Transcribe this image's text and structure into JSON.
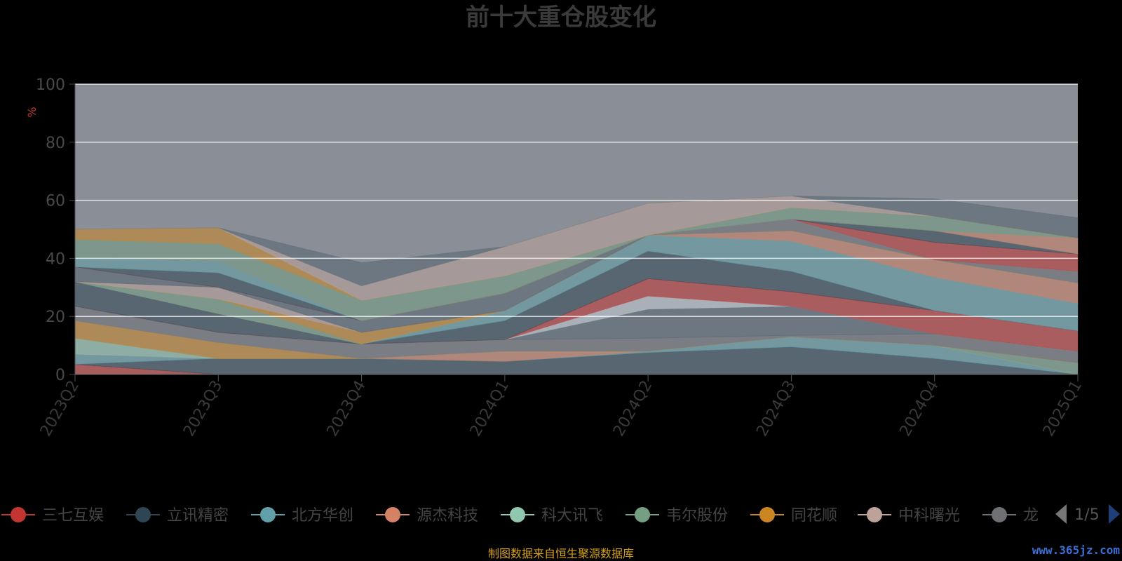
{
  "chart_data": {
    "type": "area",
    "title": "前十大重仓股变化",
    "ylabel": "%",
    "ylim": [
      0,
      100
    ],
    "yticks": [
      "0",
      "20",
      "40",
      "60",
      "80",
      "100"
    ],
    "categories": [
      "2023Q2",
      "2023Q3",
      "2023Q4",
      "2024Q1",
      "2024Q2",
      "2024Q3",
      "2024Q4",
      "2025Q1"
    ],
    "stacked": true,
    "series": [
      {
        "name": "三七互娱",
        "color": "#c23531",
        "values": [
          3.5,
          0,
          0,
          0,
          0,
          0,
          0,
          0
        ]
      },
      {
        "name": "立讯精密",
        "color": "#2f4554",
        "values": [
          0,
          5.5,
          5.5,
          4.5,
          7.5,
          9.5,
          5.5,
          0
        ]
      },
      {
        "name": "北方华创",
        "color": "#61a0a8",
        "values": [
          3.5,
          0,
          0,
          0,
          0.5,
          3.5,
          4.5,
          0
        ]
      },
      {
        "name": "源杰科技",
        "color": "#d48265",
        "values": [
          0,
          0,
          0,
          3.5,
          0,
          0,
          0,
          0
        ]
      },
      {
        "name": "科大讯飞",
        "color": "#91c7ae",
        "values": [
          5.5,
          0,
          0,
          0,
          0,
          0,
          0,
          0
        ]
      },
      {
        "name": "韦尔股份",
        "color": "#749f83",
        "values": [
          0,
          0,
          0,
          0,
          0,
          0,
          0,
          4
        ]
      },
      {
        "name": "同花顺",
        "color": "#ca8622",
        "values": [
          6,
          5.5,
          0,
          0,
          0,
          0,
          0,
          0
        ]
      },
      {
        "name": "中科曙光",
        "color": "#bda29a",
        "values": [
          0,
          0,
          0,
          0,
          0,
          0,
          0,
          0
        ]
      },
      {
        "name": "龙迅股份",
        "color": "#6e7074",
        "values": [
          5,
          3.5,
          5,
          4,
          4.5,
          0.5,
          4,
          4
        ]
      },
      {
        "name": "",
        "color": "#546570",
        "values": [
          0,
          0,
          0,
          0,
          10,
          10,
          0,
          0
        ]
      },
      {
        "name": "",
        "color": "#c4ccd3",
        "values": [
          0,
          0,
          0,
          0,
          4.5,
          0,
          0,
          0
        ]
      },
      {
        "name": "",
        "color": "#c23531",
        "values": [
          0,
          0,
          0,
          0,
          6,
          5,
          8,
          7
        ]
      },
      {
        "name": "",
        "color": "#2f4554",
        "values": [
          8.5,
          6.5,
          0,
          6.5,
          9.5,
          7,
          0,
          0
        ]
      },
      {
        "name": "",
        "color": "#61a0a8",
        "values": [
          0,
          0,
          0,
          3.5,
          5.5,
          10.5,
          11.5,
          9.5
        ]
      },
      {
        "name": "",
        "color": "#d48265",
        "values": [
          0,
          0,
          0,
          0,
          0,
          3.5,
          6,
          7
        ]
      },
      {
        "name": "",
        "color": "#91c7ae",
        "values": [
          0,
          0,
          0,
          0,
          0,
          0,
          0,
          0
        ]
      },
      {
        "name": "",
        "color": "#749f83",
        "values": [
          0,
          5,
          0,
          0,
          0,
          0,
          0,
          0
        ]
      },
      {
        "name": "",
        "color": "#ca8622",
        "values": [
          0,
          0,
          4,
          0,
          0,
          0,
          0,
          0
        ]
      },
      {
        "name": "",
        "color": "#bda29a",
        "values": [
          0,
          4,
          0,
          0,
          0,
          0,
          0,
          0
        ]
      },
      {
        "name": "",
        "color": "#6e7074",
        "values": [
          0,
          0,
          0,
          0,
          0,
          4,
          0,
          4
        ]
      },
      {
        "name": "",
        "color": "#546570",
        "values": [
          5,
          0,
          4,
          6,
          0,
          0,
          0,
          0
        ]
      },
      {
        "name": "",
        "color": "#c4ccd3",
        "values": [
          0,
          0,
          0,
          0,
          0,
          0,
          0,
          0
        ]
      },
      {
        "name": "",
        "color": "#c23531",
        "values": [
          0,
          0,
          0,
          0,
          0,
          0,
          6,
          6
        ]
      },
      {
        "name": "",
        "color": "#2f4554",
        "values": [
          0,
          5,
          0,
          0,
          0,
          0,
          4,
          0
        ]
      },
      {
        "name": "",
        "color": "#61a0a8",
        "values": [
          3.5,
          4,
          0,
          0,
          0,
          0,
          0,
          0
        ]
      },
      {
        "name": "",
        "color": "#d48265",
        "values": [
          0,
          0,
          0,
          0,
          0,
          0,
          0,
          5.5
        ]
      },
      {
        "name": "",
        "color": "#749f83",
        "values": [
          6,
          6,
          7,
          6,
          0,
          4,
          5,
          0
        ]
      },
      {
        "name": "",
        "color": "#ca8622",
        "values": [
          3.5,
          5.5,
          0,
          0,
          0,
          0,
          0,
          0
        ]
      },
      {
        "name": "",
        "color": "#bda29a",
        "values": [
          0,
          0,
          5,
          10,
          11,
          4,
          0,
          0
        ]
      },
      {
        "name": "",
        "color": "#546570",
        "values": [
          0,
          0,
          8,
          0,
          0,
          0,
          6,
          7
        ]
      }
    ]
  },
  "legend": {
    "items": [
      {
        "label": "三七互娱",
        "color": "#c23531"
      },
      {
        "label": "立讯精密",
        "color": "#2f4554"
      },
      {
        "label": "北方华创",
        "color": "#61a0a8"
      },
      {
        "label": "源杰科技",
        "color": "#d48265"
      },
      {
        "label": "科大讯飞",
        "color": "#91c7ae"
      },
      {
        "label": "韦尔股份",
        "color": "#749f83"
      },
      {
        "label": "同花顺",
        "color": "#ca8622"
      },
      {
        "label": "中科曙光",
        "color": "#bda29a"
      },
      {
        "label": "龙迅股份",
        "color": "#6e7074"
      }
    ],
    "page": "1/5"
  },
  "footer": "制图数据来自恒生聚源数据库",
  "watermark": "www.365jz.com"
}
